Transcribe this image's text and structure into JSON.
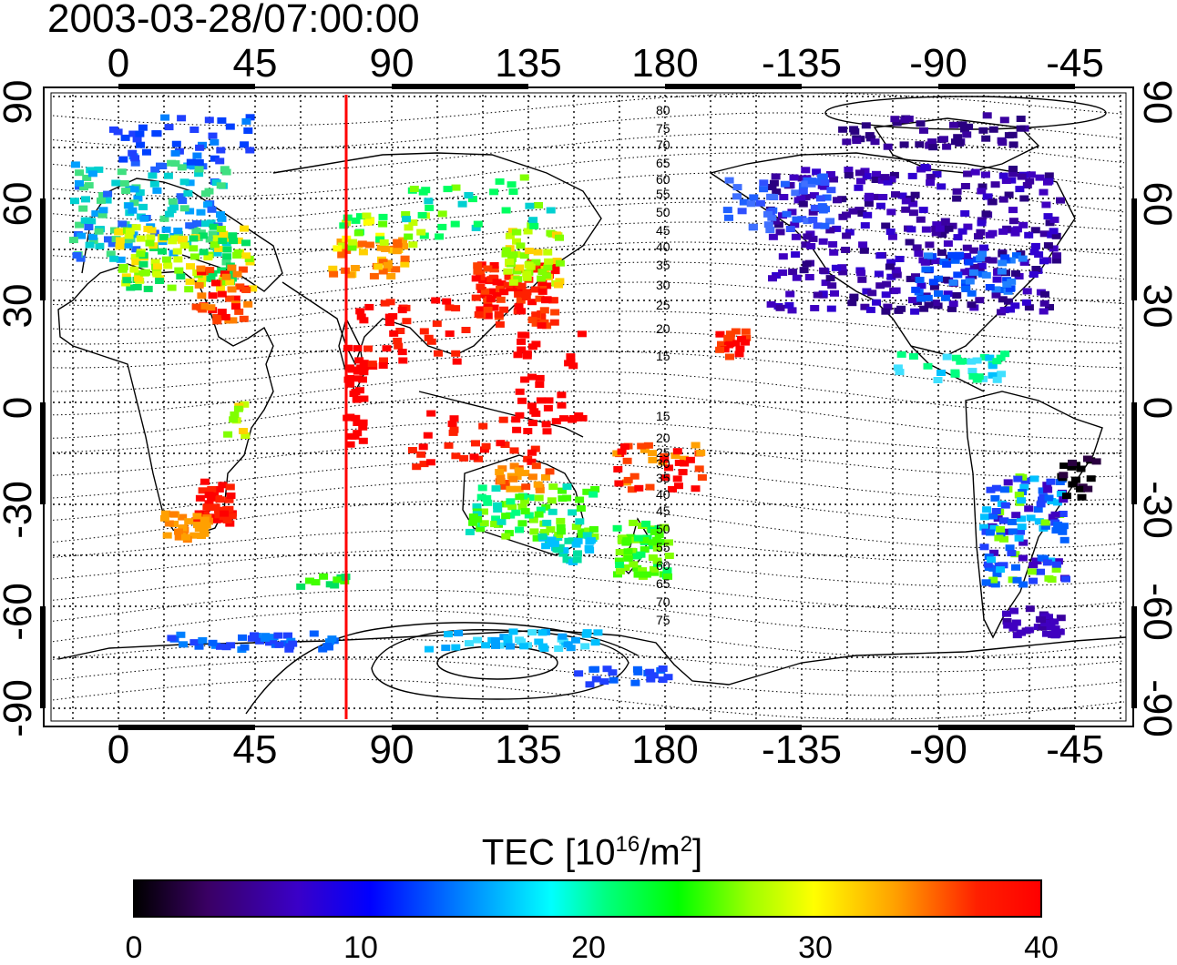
{
  "timestamp": "2003-03-28/07:00:00",
  "axes": {
    "lon_labels": [
      "0",
      "45",
      "90",
      "135",
      "180",
      "-135",
      "-90",
      "-45"
    ],
    "lat_labels_left": [
      "90",
      "60",
      "30",
      "0",
      "-30",
      "-60",
      "-90"
    ],
    "lat_labels_right": [
      "90",
      "60",
      "30",
      "0",
      "-30",
      "-60",
      "-90"
    ]
  },
  "contour_labels": [
    "80",
    "75",
    "70",
    "65",
    "60",
    "55",
    "50",
    "45",
    "40",
    "35",
    "30",
    "25",
    "20",
    "15",
    "15",
    "20",
    "25",
    "30",
    "35",
    "40",
    "45",
    "50",
    "55",
    "60",
    "65",
    "70",
    "75"
  ],
  "colorbar": {
    "title_main": "TEC  [10",
    "title_sup1": "16",
    "title_mid": "/m",
    "title_sup2": "2",
    "title_end": "]",
    "ticks": [
      "0",
      "10",
      "20",
      "30",
      "40"
    ],
    "range": [
      0,
      40
    ]
  },
  "colors": {
    "marker_line": "#ff0000",
    "grid": "#000000"
  },
  "marker_longitude": 75
}
